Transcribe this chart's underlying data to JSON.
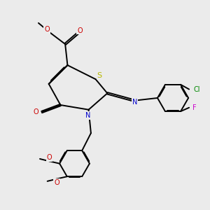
{
  "bg_color": "#ebebeb",
  "atom_colors": {
    "S": "#b8b800",
    "N": "#0000cc",
    "O": "#cc0000",
    "Cl": "#008800",
    "F": "#cc00cc",
    "C": "#000000"
  },
  "lw": 1.4,
  "fs": 7.0,
  "dbo": 0.018
}
